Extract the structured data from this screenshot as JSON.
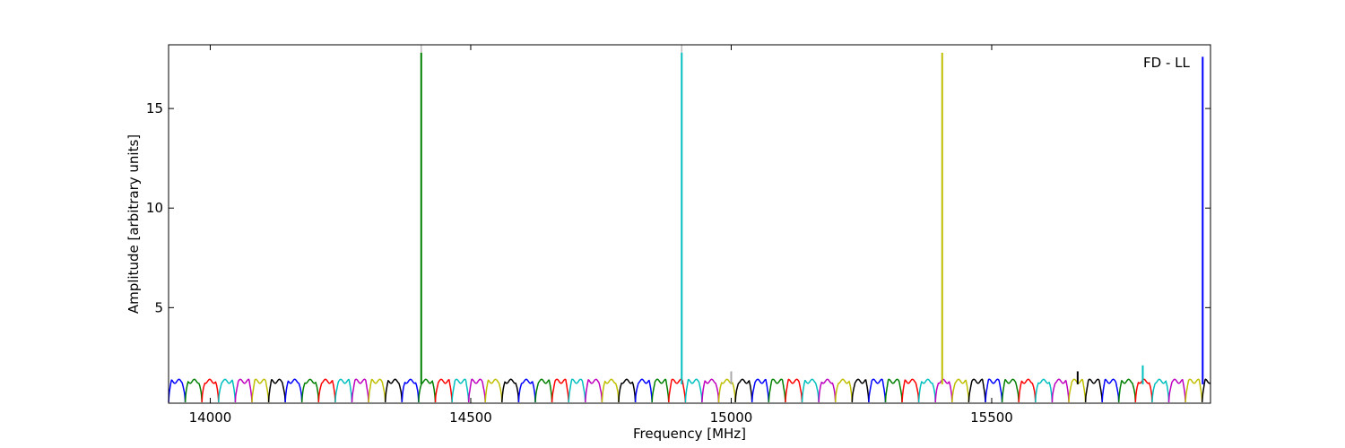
{
  "chart_data": {
    "type": "line",
    "annotation": "FD - LL",
    "xlabel": "Frequency [MHz]",
    "ylabel": "Amplitude [arbitrary units]",
    "xlim": [
      13920,
      15920
    ],
    "ylim": [
      0.2,
      18.2
    ],
    "grid": false,
    "x_ticks": [
      14000,
      14500,
      15000,
      15500
    ],
    "y_ticks": [
      5,
      10,
      15
    ],
    "band_width_mhz": 32,
    "band_start_mhz": 13920,
    "color_cycle": [
      "#0000ff",
      "#008000",
      "#ff0000",
      "#00bfbf",
      "#bf00bf",
      "#bfbf00",
      "#000000"
    ],
    "baseline": {
      "low": 0.25,
      "high": 1.3
    },
    "spikes": [
      {
        "x": 14405,
        "y": 17.8,
        "color": "#008000"
      },
      {
        "x": 14905,
        "y": 17.8,
        "color": "#00bfbf"
      },
      {
        "x": 15405,
        "y": 17.8,
        "color": "#bfbf00"
      },
      {
        "x": 15905,
        "y": 17.6,
        "color": "#0000ff"
      },
      {
        "x": 15000,
        "y": 1.8,
        "color": "#aaaaaa"
      },
      {
        "x": 15665,
        "y": 1.8,
        "color": "#000000"
      },
      {
        "x": 15790,
        "y": 2.1,
        "color": "#00bfbf"
      }
    ],
    "faint_top_markers": [
      14405,
      14905
    ]
  }
}
